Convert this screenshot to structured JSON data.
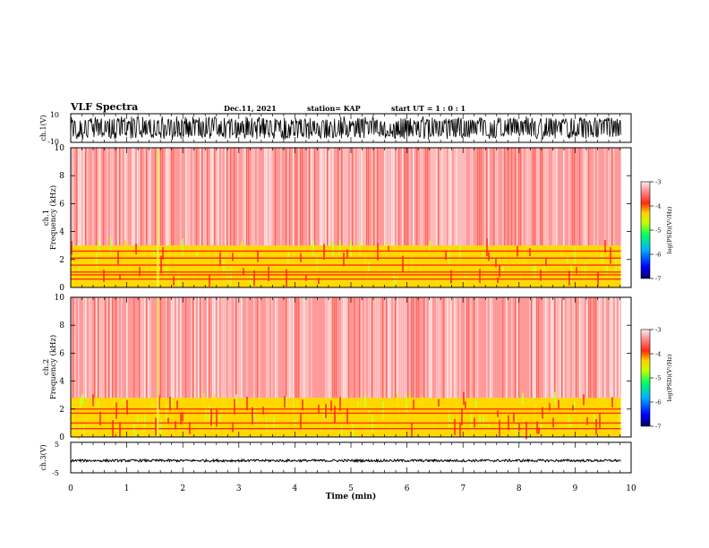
{
  "header": {
    "title": "VLF Spectra",
    "date": "Dec.11, 2021",
    "station": "station= KAP",
    "start": "start  UT =  1 : 0  : 1"
  },
  "colors": {
    "spectrogram_scale": [
      "#000080",
      "#0000ff",
      "#00c8ff",
      "#00ff66",
      "#d8ff00",
      "#ffd800",
      "#ff3a1a",
      "#ff9a9a",
      "#ffe6e6"
    ],
    "trace": "#000000"
  },
  "chart_data": [
    {
      "type": "line",
      "panel": "ch.1 waveform",
      "ylabel": "ch.1(V)",
      "ylim": [
        -10,
        10
      ],
      "yticks": [
        "10",
        "-10"
      ],
      "x_range": [
        0,
        9.82
      ],
      "approx_envelope": {
        "min": -10,
        "max": 10,
        "typical_amplitude": 7
      }
    },
    {
      "type": "heatmap",
      "panel": "ch.1 spectrogram",
      "ylabel": "ch.1\nFrequency (kHz)",
      "ylim": [
        0,
        10
      ],
      "yticks": [
        "0",
        "2",
        "4",
        "6",
        "8",
        "10"
      ],
      "x_range": [
        0,
        9.82
      ],
      "colorbar": {
        "label": "log(PSD)(V²/Hz)",
        "ticks": [
          "-3",
          "-4",
          "-5",
          "-6",
          "-7"
        ],
        "range": [
          -7,
          -3
        ]
      },
      "bands_khz": [
        {
          "from": 0,
          "to": 0.4,
          "level": -4.5
        },
        {
          "from": 0.4,
          "to": 3.0,
          "level": -4.3
        },
        {
          "from": 3.0,
          "to": 10,
          "level": -3.6
        }
      ],
      "spectral_lines_khz": [
        0.6,
        0.9,
        1.1,
        1.6,
        2.1,
        2.6
      ],
      "event_min": 1.55
    },
    {
      "type": "heatmap",
      "panel": "ch.2 spectrogram",
      "ylabel": "ch.2\nFrequency (kHz)",
      "ylim": [
        0,
        10
      ],
      "yticks": [
        "0",
        "2",
        "4",
        "6",
        "8",
        "10"
      ],
      "x_range": [
        0,
        9.82
      ],
      "colorbar": {
        "label": "log(PSD)(V²/Hz)",
        "ticks": [
          "-3",
          "-4",
          "-5",
          "-6",
          "-7"
        ],
        "range": [
          -7,
          -3
        ]
      },
      "bands_khz": [
        {
          "from": 0,
          "to": 0.4,
          "level": -4.5
        },
        {
          "from": 0.4,
          "to": 2.8,
          "level": -4.5
        },
        {
          "from": 2.8,
          "to": 10,
          "level": -3.6
        }
      ],
      "spectral_lines_khz": [
        0.6,
        1.0,
        1.7,
        2.0
      ],
      "event_min": 1.55
    },
    {
      "type": "line",
      "panel": "ch.3 waveform",
      "ylabel": "ch.3(V)",
      "ylim": [
        -5,
        5
      ],
      "yticks": [
        "5",
        "-5"
      ],
      "x_range": [
        0,
        9.82
      ],
      "approx_level": -1.0,
      "approx_amplitude": 0.4
    }
  ],
  "xaxis": {
    "label": "Time (min)",
    "ticks": [
      "0",
      "1",
      "2",
      "3",
      "4",
      "5",
      "6",
      "7",
      "8",
      "9",
      "10"
    ],
    "range": [
      0,
      10
    ]
  }
}
